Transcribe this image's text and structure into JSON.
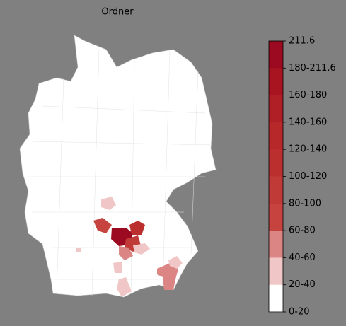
{
  "title": "Ordner",
  "colorbar": {
    "labels": [
      "211.6",
      "180-211.6",
      "160-180",
      "140-160",
      "120-140",
      "100-120",
      "80-100",
      "60-80",
      "40-60",
      "20-40",
      "0-20"
    ],
    "colors": [
      "#9b0a20",
      "#a8141f",
      "#b01f25",
      "#b6282a",
      "#bb302f",
      "#c03a37",
      "#c6433f",
      "#dc8585",
      "#f0c6c6",
      "#ffffff"
    ]
  }
}
